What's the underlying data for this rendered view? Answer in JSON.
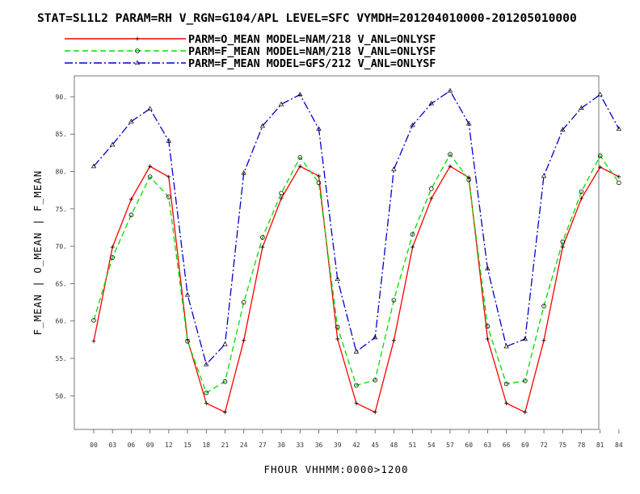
{
  "title": "STAT=SL1L2 PARAM=RH V_RGN=G104/APL LEVEL=SFC VYMDH=201204010000-201205010000",
  "chart_data": {
    "type": "line",
    "xlabel": "FHOUR VHHMM:0000>1200",
    "ylabel": "F_MEAN | O_MEAN | F_MEAN",
    "categories": [
      "00",
      "03",
      "06",
      "09",
      "12",
      "15",
      "18",
      "21",
      "24",
      "27",
      "30",
      "33",
      "36",
      "39",
      "42",
      "45",
      "48",
      "51",
      "54",
      "57",
      "60",
      "63",
      "66",
      "69",
      "72",
      "75",
      "78",
      "81",
      "84"
    ],
    "y_ticks": [
      "50.",
      "55.",
      "60.",
      "65.",
      "70.",
      "75.",
      "80.",
      "85.",
      "90."
    ],
    "ylim": [
      45.5,
      92.8
    ],
    "grid": false,
    "legend_position": "top-left",
    "series": [
      {
        "name": "PARM=O_MEAN MODEL=NAM/218 V_ANL=ONLYSF",
        "color": "#ff0000",
        "dash": "solid",
        "marker": "plus",
        "values": [
          57.3,
          69.9,
          76.3,
          80.7,
          79.3,
          57.5,
          49.0,
          47.8,
          57.4,
          69.9,
          76.4,
          80.7,
          79.4,
          57.6,
          49.0,
          47.8,
          57.4,
          69.9,
          76.4,
          80.7,
          79.2,
          57.6,
          49.0,
          47.8,
          57.4,
          69.9,
          76.4,
          80.6,
          79.3
        ]
      },
      {
        "name": "PARM=F_MEAN MODEL=NAM/218 V_ANL=ONLYSF",
        "color": "#00dd00",
        "dash": "dashed",
        "marker": "circle",
        "values": [
          60.1,
          68.5,
          74.2,
          79.3,
          76.6,
          57.3,
          50.4,
          51.9,
          62.5,
          71.2,
          77.1,
          81.9,
          78.5,
          59.2,
          51.4,
          52.1,
          62.8,
          71.6,
          77.7,
          82.3,
          78.9,
          59.3,
          51.6,
          52.0,
          62.0,
          70.6,
          77.3,
          82.1,
          78.5
        ]
      },
      {
        "name": "PARM=F_MEAN MODEL=GFS/212 V_ANL=ONLYSF",
        "color": "#0000cc",
        "dash": "dashdot",
        "marker": "triangle",
        "values": [
          80.7,
          83.6,
          86.7,
          88.4,
          84.1,
          63.5,
          54.2,
          56.9,
          79.8,
          86.1,
          89.0,
          90.3,
          85.7,
          65.6,
          55.9,
          57.8,
          80.3,
          86.2,
          89.1,
          90.8,
          86.4,
          67.0,
          56.6,
          57.6,
          79.4,
          85.6,
          88.5,
          90.3,
          85.7
        ]
      }
    ]
  }
}
